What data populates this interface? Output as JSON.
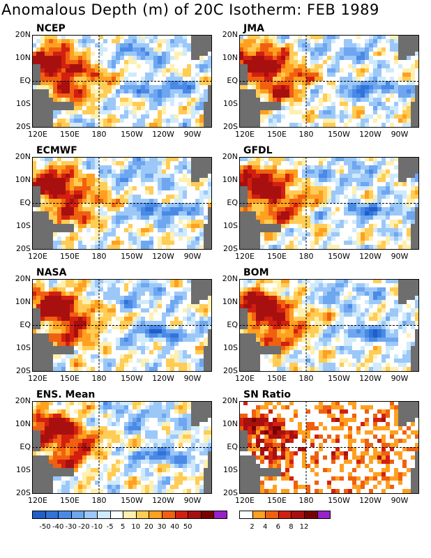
{
  "title": "Anomalous Depth (m) of 20C Isotherm: FEB 1989",
  "lat_labels": [
    "20N",
    "10N",
    "EQ",
    "10S",
    "20S"
  ],
  "lon_labels": [
    "120E",
    "150E",
    "180",
    "150W",
    "120W",
    "90W"
  ],
  "panels": [
    {
      "name": "NCEP"
    },
    {
      "name": "JMA"
    },
    {
      "name": "ECMWF"
    },
    {
      "name": "GFDL"
    },
    {
      "name": "NASA"
    },
    {
      "name": "BOM"
    },
    {
      "name": "ENS. Mean"
    },
    {
      "name": "SN Ratio"
    }
  ],
  "anomaly_colorbar": {
    "colors": [
      "#1f5fc8",
      "#3273d8",
      "#4a8ae6",
      "#6ea6f0",
      "#9cc8f8",
      "#cfeafc",
      "#ffffff",
      "#fff0b0",
      "#ffcc55",
      "#ffa020",
      "#f06010",
      "#d22010",
      "#a81010",
      "#7a0000",
      "#9a20c8"
    ],
    "labels": [
      "-50",
      "-40",
      "-30",
      "-20",
      "-10",
      "-5",
      "5",
      "10",
      "20",
      "30",
      "40",
      "50"
    ]
  },
  "sn_colorbar": {
    "colors": [
      "#ffffff",
      "#ffa020",
      "#f06010",
      "#d22010",
      "#a81010",
      "#7a0000",
      "#9a20c8"
    ],
    "labels": [
      "2",
      "4",
      "6",
      "8",
      "12"
    ]
  },
  "colors": {
    "land": "#6e6e6e",
    "grid": "#000000"
  }
}
